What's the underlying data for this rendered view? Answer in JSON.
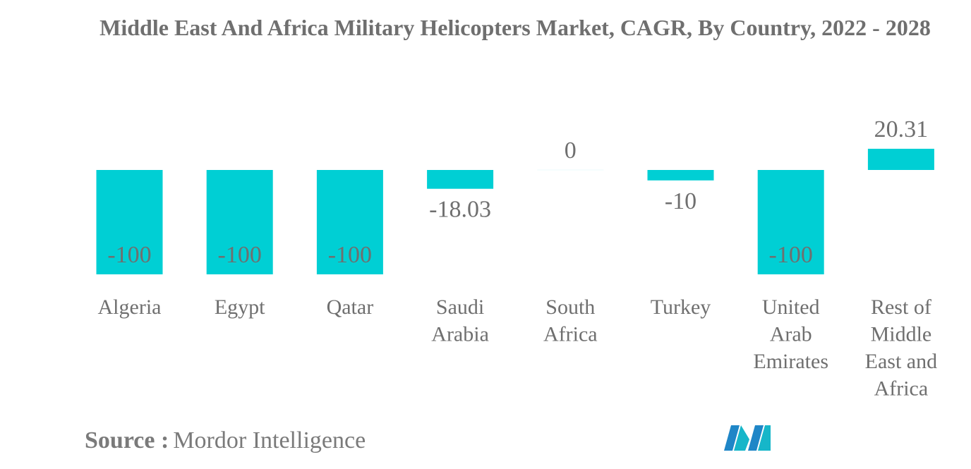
{
  "chart_data": {
    "type": "bar",
    "title": "Middle East And Africa Military Helicopters Market, CAGR, By Country, 2022 - 2028",
    "categories": [
      "Algeria",
      "Egypt",
      "Qatar",
      "Saudi Arabia",
      "South Africa",
      "Turkey",
      "United Arab Emirates",
      "Rest of Middle East and Africa"
    ],
    "category_lines": [
      [
        "Algeria"
      ],
      [
        "Egypt"
      ],
      [
        "Qatar"
      ],
      [
        "Saudi",
        "Arabia"
      ],
      [
        "South",
        "Africa"
      ],
      [
        "Turkey"
      ],
      [
        "United",
        "Arab",
        "Emirates"
      ],
      [
        "Rest of",
        "Middle",
        "East and",
        "Africa"
      ]
    ],
    "values": [
      -100,
      -100,
      -100,
      -18.03,
      0,
      -10,
      -100,
      20.31
    ],
    "value_labels": [
      "-100",
      "-100",
      "-100",
      "-18.03",
      "0",
      "-10",
      "-100",
      "20.31"
    ],
    "bar_color": "#00cfd4",
    "xlabel": "",
    "ylabel": "",
    "grid": false,
    "legend": "none"
  },
  "source": {
    "label": "Source :",
    "text": "Mordor Intelligence"
  },
  "logo": {
    "icon": "mordor-intelligence-logo-icon",
    "colors": [
      "#1f86c7",
      "#16b6c9"
    ]
  }
}
